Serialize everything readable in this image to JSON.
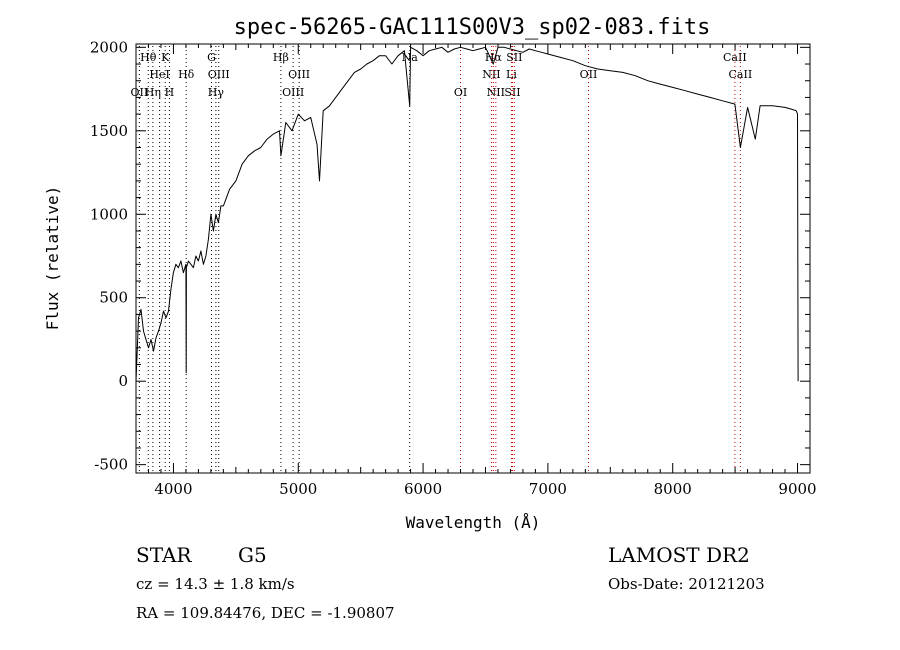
{
  "chart_data": {
    "type": "line",
    "title": "spec-56265-GAC111S00V3_sp02-083.fits",
    "xlabel": "Wavelength (Å)",
    "ylabel": "Flux (relative)",
    "xlim": [
      3700,
      9100
    ],
    "ylim": [
      -550,
      2020
    ],
    "xticks": [
      4000,
      5000,
      6000,
      7000,
      8000,
      9000
    ],
    "yticks": [
      -500,
      0,
      500,
      1000,
      1500,
      2000
    ],
    "grid": false,
    "series": [
      {
        "x": [
          3700,
          3720,
          3740,
          3760,
          3780,
          3800,
          3820,
          3840,
          3860,
          3880,
          3900,
          3920,
          3940,
          3960,
          3980,
          4000,
          4020,
          4040,
          4060,
          4080,
          4100,
          4102,
          4104,
          4120,
          4140,
          4160,
          4180,
          4200,
          4220,
          4240,
          4260,
          4280,
          4300,
          4320,
          4340,
          4360,
          4380,
          4400,
          4450,
          4500,
          4550,
          4600,
          4650,
          4700,
          4750,
          4800,
          4850,
          4861,
          4900,
          4950,
          5000,
          5050,
          5100,
          5150,
          5170,
          5200,
          5250,
          5300,
          5350,
          5400,
          5450,
          5500,
          5550,
          5600,
          5650,
          5700,
          5750,
          5800,
          5850,
          5893,
          5900,
          5950,
          6000,
          6050,
          6100,
          6150,
          6200,
          6250,
          6300,
          6350,
          6400,
          6450,
          6500,
          6563,
          6600,
          6650,
          6700,
          6750,
          6800,
          6850,
          6900,
          6950,
          7000,
          7100,
          7200,
          7300,
          7400,
          7500,
          7600,
          7700,
          7800,
          7900,
          8000,
          8100,
          8200,
          8300,
          8400,
          8498,
          8542,
          8600,
          8662,
          8700,
          8800,
          8900,
          8950,
          8990,
          9000,
          9005
        ],
        "y": [
          0,
          380,
          430,
          300,
          250,
          200,
          250,
          180,
          260,
          300,
          350,
          420,
          380,
          420,
          550,
          650,
          700,
          680,
          720,
          650,
          700,
          50,
          680,
          720,
          700,
          680,
          750,
          720,
          780,
          700,
          750,
          850,
          1000,
          900,
          1000,
          950,
          1050,
          1050,
          1150,
          1200,
          1300,
          1350,
          1380,
          1400,
          1450,
          1480,
          1500,
          1350,
          1550,
          1500,
          1600,
          1560,
          1580,
          1420,
          1200,
          1620,
          1650,
          1700,
          1750,
          1800,
          1850,
          1870,
          1900,
          1920,
          1950,
          1950,
          1900,
          1950,
          1980,
          1650,
          2000,
          1980,
          1950,
          1980,
          1990,
          2000,
          1970,
          1990,
          2000,
          1990,
          1980,
          1990,
          2000,
          1900,
          2000,
          2000,
          1990,
          1980,
          1970,
          1990,
          1980,
          1970,
          1960,
          1940,
          1920,
          1890,
          1870,
          1860,
          1850,
          1830,
          1800,
          1780,
          1760,
          1740,
          1720,
          1700,
          1680,
          1660,
          1400,
          1640,
          1450,
          1650,
          1650,
          1640,
          1630,
          1620,
          1600,
          0
        ]
      }
    ],
    "line_markers": [
      {
        "label": "OII",
        "wave": 3727,
        "row": 3,
        "color": "#000000"
      },
      {
        "label": "Hθ",
        "wave": 3798,
        "row": 1,
        "color": "#000000"
      },
      {
        "label": "Hη",
        "wave": 3835,
        "row": 3,
        "color": "#000000"
      },
      {
        "label": "HeI",
        "wave": 3889,
        "row": 2,
        "color": "#000000"
      },
      {
        "label": "K",
        "wave": 3934,
        "row": 1,
        "color": "#000000"
      },
      {
        "label": "H",
        "wave": 3968,
        "row": 3,
        "color": "#000000"
      },
      {
        "label": "Hδ",
        "wave": 4102,
        "row": 2,
        "color": "#000000"
      },
      {
        "label": "G",
        "wave": 4305,
        "row": 1,
        "color": "#000000"
      },
      {
        "label": "Hγ",
        "wave": 4340,
        "row": 3,
        "color": "#000000"
      },
      {
        "label": "OIII",
        "wave": 4363,
        "row": 2,
        "color": "#000000"
      },
      {
        "label": "Hβ",
        "wave": 4861,
        "row": 1,
        "color": "#000000"
      },
      {
        "label": "OIII",
        "wave": 4959,
        "row": 3,
        "color": "#000000"
      },
      {
        "label": "OIII",
        "wave": 5007,
        "row": 2,
        "color": "#000000"
      },
      {
        "label": "Na",
        "wave": 5893,
        "row": 1,
        "color": "#000000"
      },
      {
        "label": "OI",
        "wave": 6300,
        "row": 3,
        "color": "#cc0000"
      },
      {
        "label": "NII",
        "wave": 6548,
        "row": 2,
        "color": "#cc0000"
      },
      {
        "label": "Hα",
        "wave": 6563,
        "row": 1,
        "color": "#cc0000"
      },
      {
        "label": "NII",
        "wave": 6583,
        "row": 3,
        "color": "#cc0000"
      },
      {
        "label": "Li",
        "wave": 6708,
        "row": 2,
        "color": "#cc0000"
      },
      {
        "label": "SII",
        "wave": 6716,
        "row": 3,
        "color": "#cc0000"
      },
      {
        "label": "SII",
        "wave": 6731,
        "row": 1,
        "color": "#cc0000"
      },
      {
        "label": "OII",
        "wave": 7325,
        "row": 2,
        "color": "#cc0000"
      },
      {
        "label": "CaII",
        "wave": 8498,
        "row": 1,
        "color": "#cc0000"
      },
      {
        "label": "CaII",
        "wave": 8542,
        "row": 2,
        "color": "#cc0000"
      }
    ]
  },
  "info": {
    "object_class": "STAR",
    "subclass": "G5",
    "survey": "LAMOST DR2",
    "cz": "cz = 14.3 ± 1.8 km/s",
    "obs_date": "Obs-Date: 20121203",
    "coords": "RA = 109.84476, DEC =  -1.90807"
  }
}
